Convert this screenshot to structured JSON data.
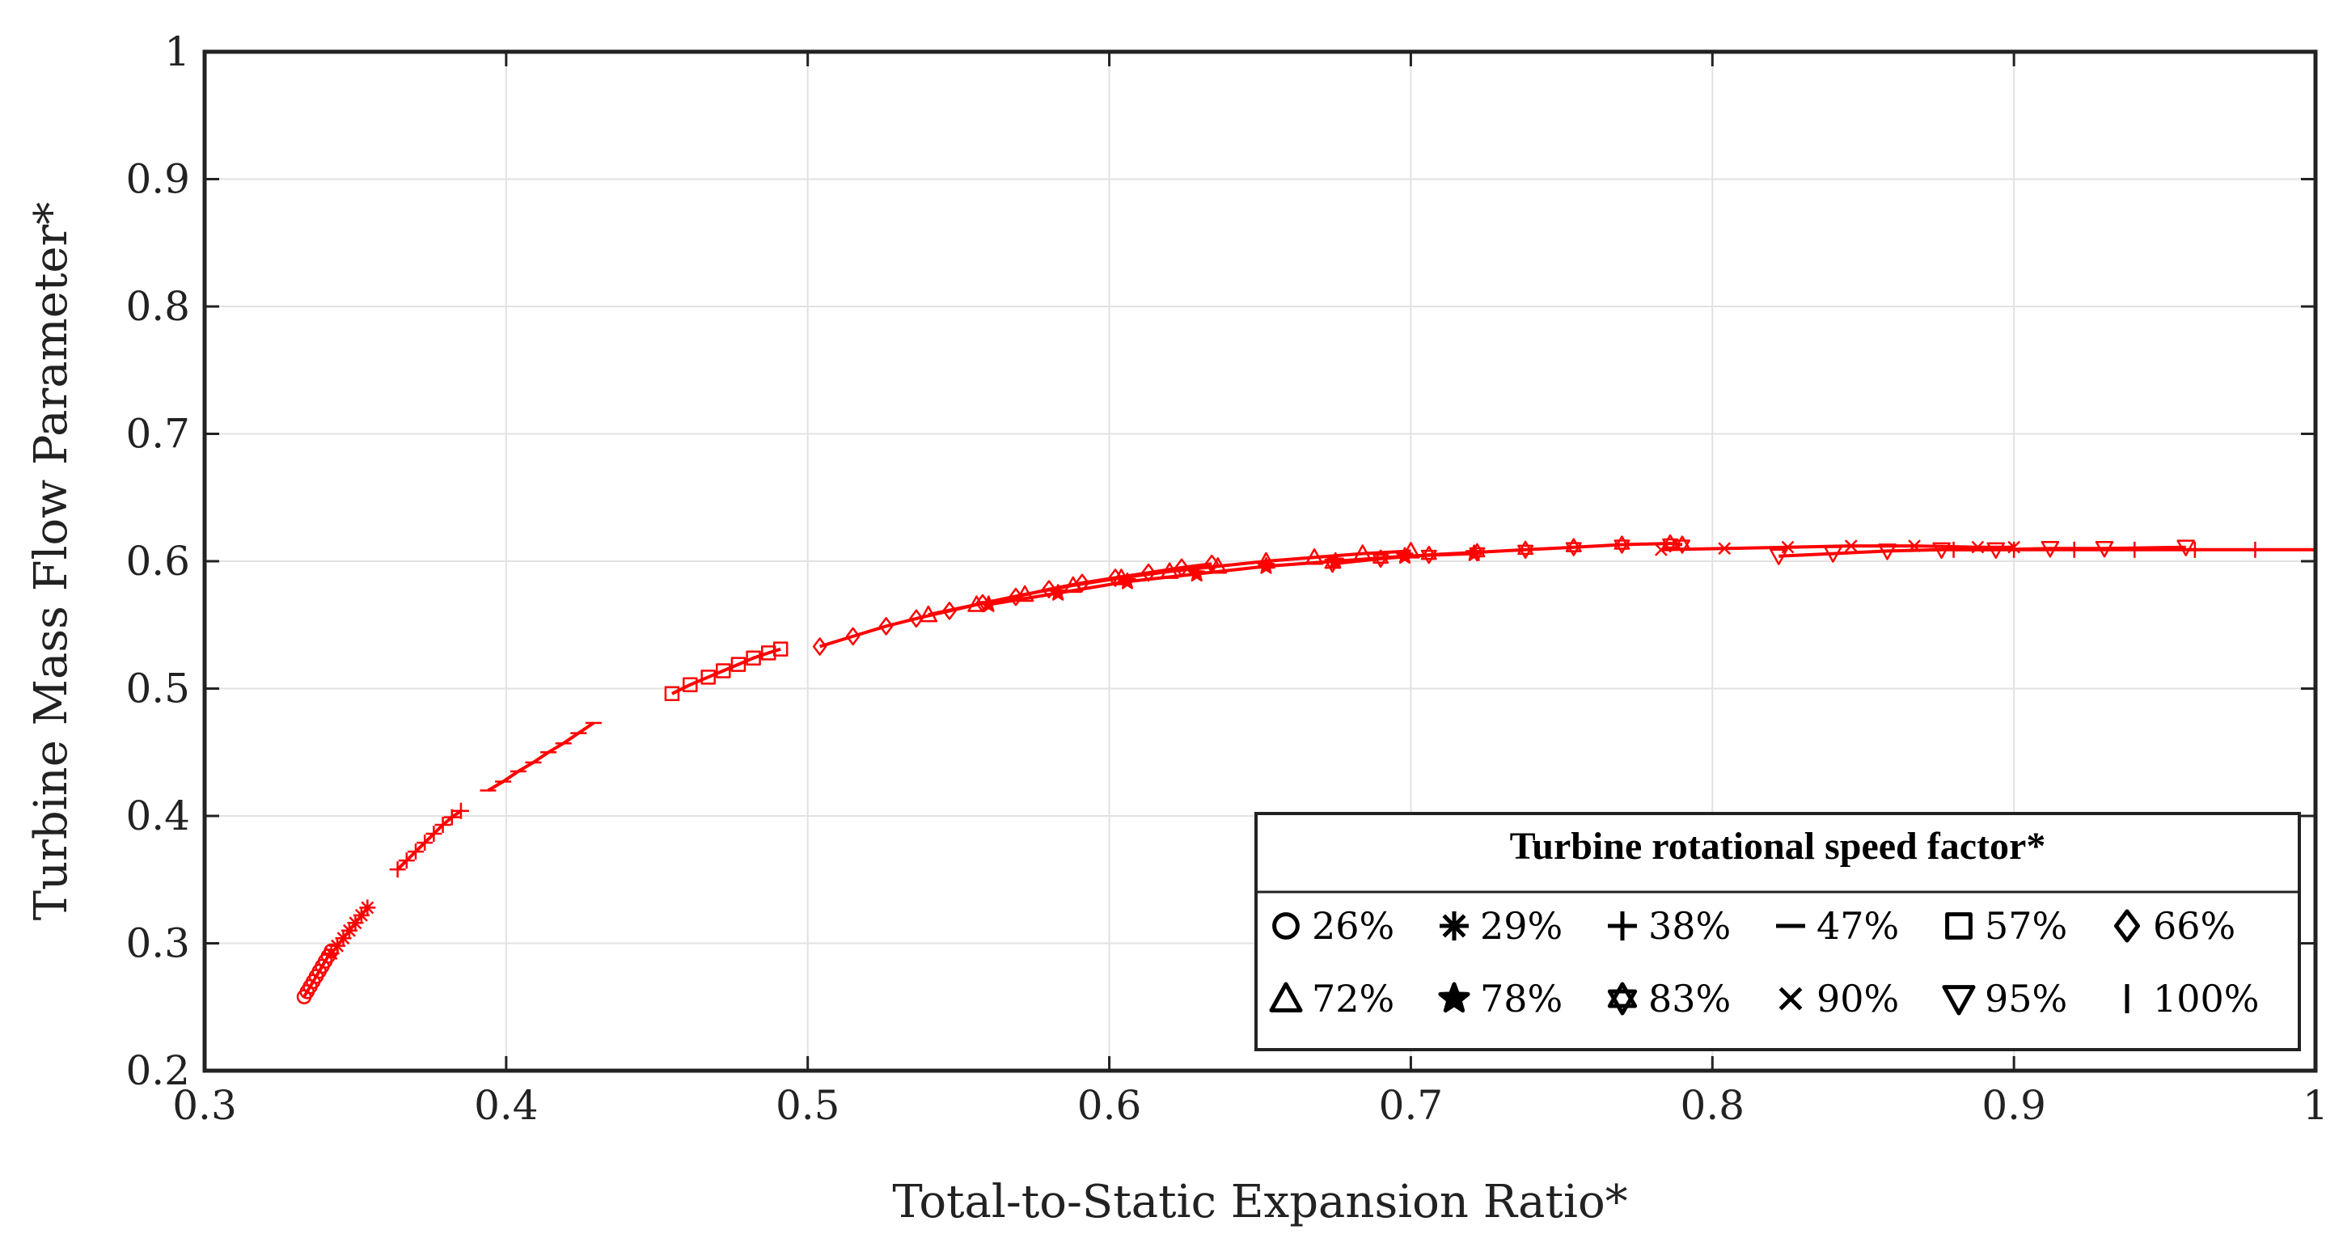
{
  "chart_data": {
    "type": "line",
    "title": "",
    "xlabel": "Total-to-Static Expansion Ratio*",
    "ylabel": "Turbine Mass Flow Parameter*",
    "xlim": [
      0.3,
      1.0
    ],
    "ylim": [
      0.2,
      1.0
    ],
    "xticks": [
      0.3,
      0.4,
      0.5,
      0.6,
      0.7,
      0.8,
      0.9,
      1.0
    ],
    "xtick_labels": [
      "0.3",
      "0.4",
      "0.5",
      "0.6",
      "0.7",
      "0.8",
      "0.9",
      "1"
    ],
    "yticks": [
      0.2,
      0.3,
      0.4,
      0.5,
      0.6,
      0.7,
      0.8,
      0.9,
      1.0
    ],
    "ytick_labels": [
      "0.2",
      "0.3",
      "0.4",
      "0.5",
      "0.6",
      "0.7",
      "0.8",
      "0.9",
      "1"
    ],
    "grid": true,
    "line_color": "#ff0000",
    "legend": {
      "title": "Turbine rotational speed factor*",
      "position": "bottom-right"
    },
    "series": [
      {
        "name": "26%",
        "marker": "circle",
        "x": [
          0.333,
          0.334,
          0.335,
          0.336,
          0.337,
          0.338,
          0.339,
          0.34,
          0.341,
          0.342
        ],
        "y": [
          0.258,
          0.262,
          0.266,
          0.27,
          0.274,
          0.278,
          0.282,
          0.286,
          0.29,
          0.294
        ]
      },
      {
        "name": "29%",
        "marker": "asterisk",
        "x": [
          0.342,
          0.344,
          0.346,
          0.348,
          0.35,
          0.352,
          0.354
        ],
        "y": [
          0.292,
          0.298,
          0.304,
          0.31,
          0.316,
          0.322,
          0.328
        ]
      },
      {
        "name": "38%",
        "marker": "plus",
        "x": [
          0.364,
          0.367,
          0.37,
          0.373,
          0.376,
          0.379,
          0.382,
          0.385
        ],
        "y": [
          0.358,
          0.365,
          0.372,
          0.379,
          0.386,
          0.393,
          0.399,
          0.404
        ]
      },
      {
        "name": "47%",
        "marker": "dash",
        "x": [
          0.394,
          0.399,
          0.404,
          0.409,
          0.414,
          0.419,
          0.424,
          0.429
        ],
        "y": [
          0.42,
          0.427,
          0.435,
          0.442,
          0.45,
          0.457,
          0.465,
          0.473
        ]
      },
      {
        "name": "57%",
        "marker": "square",
        "x": [
          0.455,
          0.461,
          0.467,
          0.472,
          0.477,
          0.482,
          0.487,
          0.491
        ],
        "y": [
          0.496,
          0.503,
          0.509,
          0.514,
          0.519,
          0.524,
          0.528,
          0.531
        ]
      },
      {
        "name": "66%",
        "marker": "diamond",
        "x": [
          0.504,
          0.515,
          0.526,
          0.536,
          0.547,
          0.558,
          0.569,
          0.58,
          0.591,
          0.602,
          0.613,
          0.624,
          0.634
        ],
        "y": [
          0.533,
          0.541,
          0.549,
          0.555,
          0.561,
          0.567,
          0.572,
          0.578,
          0.583,
          0.587,
          0.591,
          0.595,
          0.598
        ]
      },
      {
        "name": "72%",
        "marker": "triangle-up",
        "x": [
          0.54,
          0.556,
          0.572,
          0.588,
          0.604,
          0.62,
          0.636,
          0.652,
          0.668,
          0.684,
          0.7
        ],
        "y": [
          0.558,
          0.566,
          0.574,
          0.581,
          0.587,
          0.592,
          0.596,
          0.6,
          0.603,
          0.606,
          0.608
        ]
      },
      {
        "name": "78%",
        "marker": "star",
        "x": [
          0.56,
          0.583,
          0.606,
          0.629,
          0.652,
          0.675,
          0.698,
          0.721
        ],
        "y": [
          0.566,
          0.575,
          0.584,
          0.59,
          0.596,
          0.6,
          0.604,
          0.606
        ]
      },
      {
        "name": "83%",
        "marker": "hexagram",
        "x": [
          0.674,
          0.69,
          0.706,
          0.722,
          0.738,
          0.754,
          0.77,
          0.786,
          0.79
        ],
        "y": [
          0.598,
          0.602,
          0.605,
          0.607,
          0.609,
          0.611,
          0.613,
          0.614,
          0.613
        ]
      },
      {
        "name": "90%",
        "marker": "x",
        "x": [
          0.783,
          0.804,
          0.825,
          0.846,
          0.867,
          0.888,
          0.9
        ],
        "y": [
          0.609,
          0.61,
          0.611,
          0.612,
          0.612,
          0.611,
          0.611
        ]
      },
      {
        "name": "95%",
        "marker": "triangle-down",
        "x": [
          0.822,
          0.84,
          0.858,
          0.876,
          0.894,
          0.912,
          0.93,
          0.957
        ],
        "y": [
          0.604,
          0.606,
          0.608,
          0.609,
          0.609,
          0.61,
          0.61,
          0.611
        ]
      },
      {
        "name": "100%",
        "marker": "vline",
        "x": [
          0.88,
          0.9,
          0.92,
          0.94,
          0.96,
          0.98,
          1.0
        ],
        "y": [
          0.609,
          0.609,
          0.609,
          0.609,
          0.609,
          0.609,
          0.609
        ]
      }
    ]
  }
}
